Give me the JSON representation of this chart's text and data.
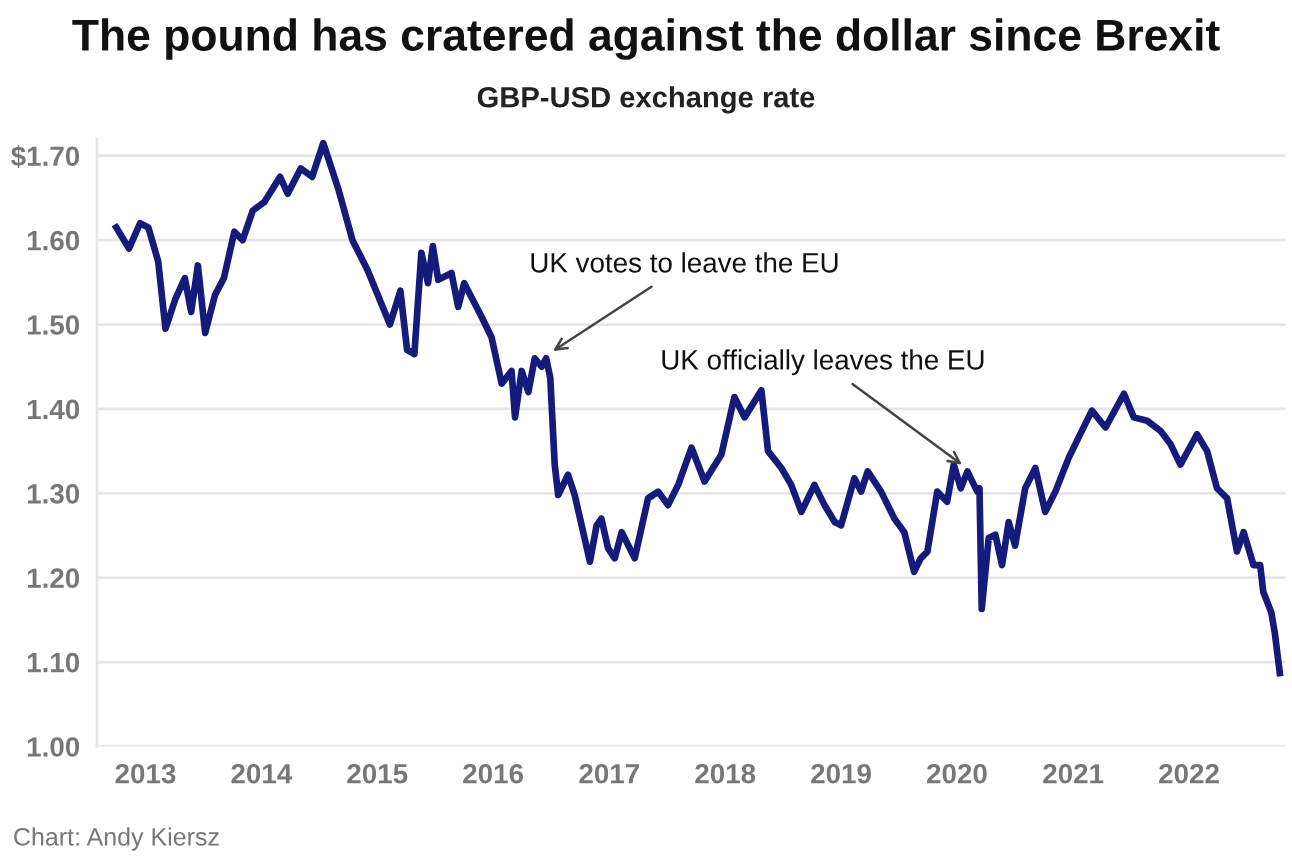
{
  "chart_data": {
    "type": "line",
    "title": "The pound has cratered against the dollar since Brexit",
    "subtitle": "GBP-USD exchange rate",
    "x": [
      "2012-10-01",
      "2012-11-10",
      "2012-12-15",
      "2013-01-10",
      "2013-02-10",
      "2013-03-05",
      "2013-04-05",
      "2013-05-05",
      "2013-05-25",
      "2013-06-15",
      "2013-07-08",
      "2013-08-08",
      "2013-09-05",
      "2013-10-08",
      "2013-11-03",
      "2013-12-05",
      "2014-01-10",
      "2014-03-01",
      "2014-03-25",
      "2014-05-05",
      "2014-06-10",
      "2014-07-15",
      "2014-09-01",
      "2014-10-15",
      "2014-12-01",
      "2015-02-10",
      "2015-03-15",
      "2015-04-05",
      "2015-04-28",
      "2015-05-20",
      "2015-06-10",
      "2015-06-25",
      "2015-07-12",
      "2015-08-23",
      "2015-09-13",
      "2015-10-02",
      "2015-11-26",
      "2015-12-27",
      "2016-01-28",
      "2016-02-28",
      "2016-03-10",
      "2016-03-31",
      "2016-04-21",
      "2016-05-11",
      "2016-06-02",
      "2016-06-16",
      "2016-06-29",
      "2016-07-13",
      "2016-07-24",
      "2016-08-24",
      "2016-09-14",
      "2016-10-15",
      "2016-11-01",
      "2016-11-22",
      "2016-12-07",
      "2016-12-28",
      "2017-01-18",
      "2017-02-09",
      "2017-03-22",
      "2017-05-03",
      "2017-06-04",
      "2017-07-05",
      "2017-08-06",
      "2017-09-17",
      "2017-10-28",
      "2017-12-20",
      "2018-01-30",
      "2018-03-03",
      "2018-04-25",
      "2018-05-16",
      "2018-06-27",
      "2018-07-28",
      "2018-08-29",
      "2018-10-09",
      "2018-11-10",
      "2018-12-12",
      "2019-01-01",
      "2019-02-12",
      "2019-03-05",
      "2019-03-26",
      "2019-05-07",
      "2019-06-18",
      "2019-07-19",
      "2019-08-19",
      "2019-09-09",
      "2019-09-30",
      "2019-10-31",
      "2019-12-01",
      "2019-12-22",
      "2020-01-13",
      "2020-02-03",
      "2020-03-05",
      "2020-03-12",
      "2020-03-19",
      "2020-04-10",
      "2020-05-01",
      "2020-05-22",
      "2020-06-12",
      "2020-07-02",
      "2020-08-03",
      "2020-09-04",
      "2020-10-05",
      "2020-11-06",
      "2020-12-18",
      "2021-01-18",
      "2021-03-01",
      "2021-04-13",
      "2021-06-10",
      "2021-07-11",
      "2021-08-22",
      "2021-10-03",
      "2021-11-04",
      "2021-12-05",
      "2022-01-26",
      "2022-02-27",
      "2022-03-30",
      "2022-05-01",
      "2022-06-01",
      "2022-06-22",
      "2022-07-23",
      "2022-08-13",
      "2022-08-23",
      "2022-09-17",
      "2022-09-28",
      "2022-10-14"
    ],
    "series": [
      {
        "color": "#141b7a",
        "values": [
          1.615,
          1.59,
          1.62,
          1.615,
          1.575,
          1.495,
          1.53,
          1.555,
          1.515,
          1.57,
          1.49,
          1.535,
          1.555,
          1.61,
          1.6,
          1.635,
          1.645,
          1.675,
          1.655,
          1.685,
          1.675,
          1.715,
          1.66,
          1.6,
          1.565,
          1.5,
          1.54,
          1.47,
          1.465,
          1.585,
          1.549,
          1.593,
          1.553,
          1.561,
          1.521,
          1.549,
          1.509,
          1.485,
          1.43,
          1.445,
          1.39,
          1.445,
          1.42,
          1.46,
          1.45,
          1.46,
          1.437,
          1.334,
          1.298,
          1.322,
          1.298,
          1.247,
          1.219,
          1.262,
          1.27,
          1.235,
          1.223,
          1.254,
          1.223,
          1.294,
          1.302,
          1.286,
          1.31,
          1.354,
          1.314,
          1.346,
          1.414,
          1.39,
          1.422,
          1.35,
          1.33,
          1.31,
          1.278,
          1.31,
          1.286,
          1.266,
          1.262,
          1.318,
          1.302,
          1.326,
          1.302,
          1.27,
          1.254,
          1.207,
          1.223,
          1.231,
          1.302,
          1.29,
          1.334,
          1.306,
          1.326,
          1.302,
          1.306,
          1.163,
          1.247,
          1.251,
          1.215,
          1.266,
          1.238,
          1.306,
          1.33,
          1.278,
          1.302,
          1.342,
          1.366,
          1.398,
          1.378,
          1.418,
          1.39,
          1.386,
          1.374,
          1.358,
          1.334,
          1.37,
          1.35,
          1.306,
          1.294,
          1.231,
          1.254,
          1.215,
          1.215,
          1.183,
          1.159,
          1.135,
          1.087
        ]
      }
    ],
    "xlim": [
      "2012-08-01",
      "2022-11-01"
    ],
    "xticks": [
      "2013",
      "2014",
      "2015",
      "2016",
      "2017",
      "2018",
      "2019",
      "2020",
      "2021",
      "2022"
    ],
    "ylim": [
      1.0,
      1.72
    ],
    "yticks": [
      {
        "value": 1.0,
        "label": "1.00"
      },
      {
        "value": 1.1,
        "label": "1.10"
      },
      {
        "value": 1.2,
        "label": "1.20"
      },
      {
        "value": 1.3,
        "label": "1.30"
      },
      {
        "value": 1.4,
        "label": "1.40"
      },
      {
        "value": 1.5,
        "label": "1.50"
      },
      {
        "value": 1.6,
        "label": "1.60"
      },
      {
        "value": 1.7,
        "label": "$1.70"
      }
    ],
    "grid": "y",
    "annotations": [
      {
        "text": "UK votes to leave the EU",
        "x": "2016-06-23",
        "y": 1.465
      },
      {
        "text": "UK officially leaves the EU",
        "x": "2020-01-31",
        "y": 1.33
      },
      "Chart: Andy Kiersz"
    ]
  }
}
